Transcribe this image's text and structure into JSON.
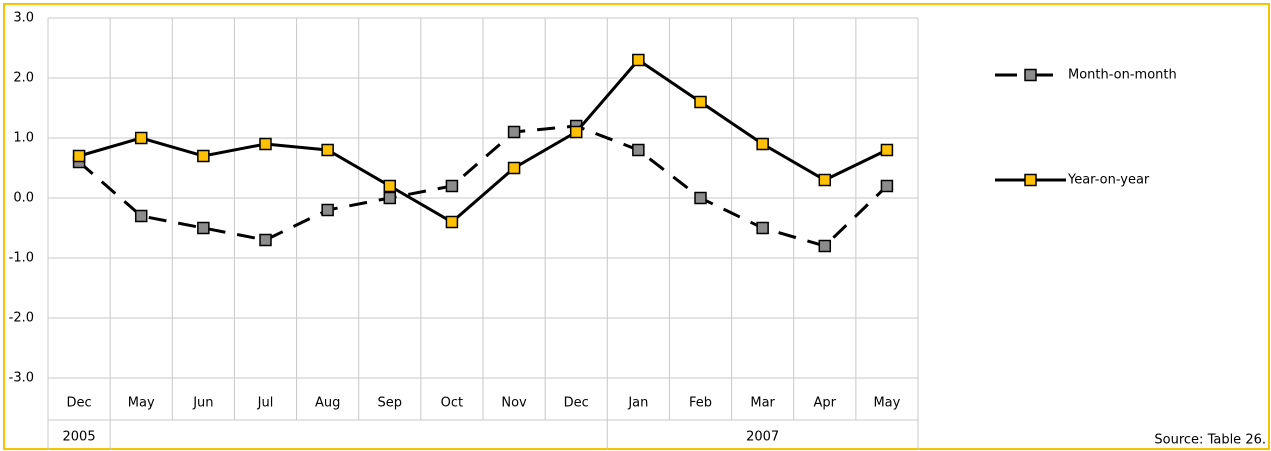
{
  "chart_data": {
    "type": "line",
    "categories": [
      "Dec",
      "May",
      "Jun",
      "Jul",
      "Aug",
      "Sep",
      "Oct",
      "Nov",
      "Dec",
      "Jan",
      "Feb",
      "Mar",
      "Apr",
      "May"
    ],
    "year_groups": [
      {
        "label": "2005",
        "span": 1
      },
      {
        "label": null,
        "span": 8
      },
      {
        "label": "2007",
        "span": 5
      }
    ],
    "series": [
      {
        "name": "Month-on-month",
        "color": "#8c8c8c",
        "line_style": "dashed",
        "values": [
          0.6,
          -0.3,
          -0.5,
          -0.7,
          -0.2,
          0.0,
          0.2,
          1.1,
          1.2,
          0.8,
          0.0,
          -0.5,
          -0.8,
          0.2
        ]
      },
      {
        "name": "Year-on-year",
        "color": "#ffc000",
        "line_style": "solid",
        "values": [
          0.7,
          1.0,
          0.7,
          0.9,
          0.8,
          0.2,
          -0.4,
          0.5,
          1.1,
          2.3,
          1.6,
          0.9,
          0.3,
          0.8
        ]
      }
    ],
    "ylim": [
      -3,
      3
    ],
    "yticks": [
      {
        "value": -3,
        "label": "-3.0"
      },
      {
        "value": -2,
        "label": "-2.0"
      },
      {
        "value": -1,
        "label": "-1.0"
      },
      {
        "value": 0,
        "label": "0.0"
      },
      {
        "value": 1,
        "label": "1.0"
      },
      {
        "value": 2,
        "label": "2.0"
      },
      {
        "value": 3,
        "label": "3.0"
      }
    ],
    "grid": true,
    "legend": "right",
    "source": "Source: Table 26."
  }
}
